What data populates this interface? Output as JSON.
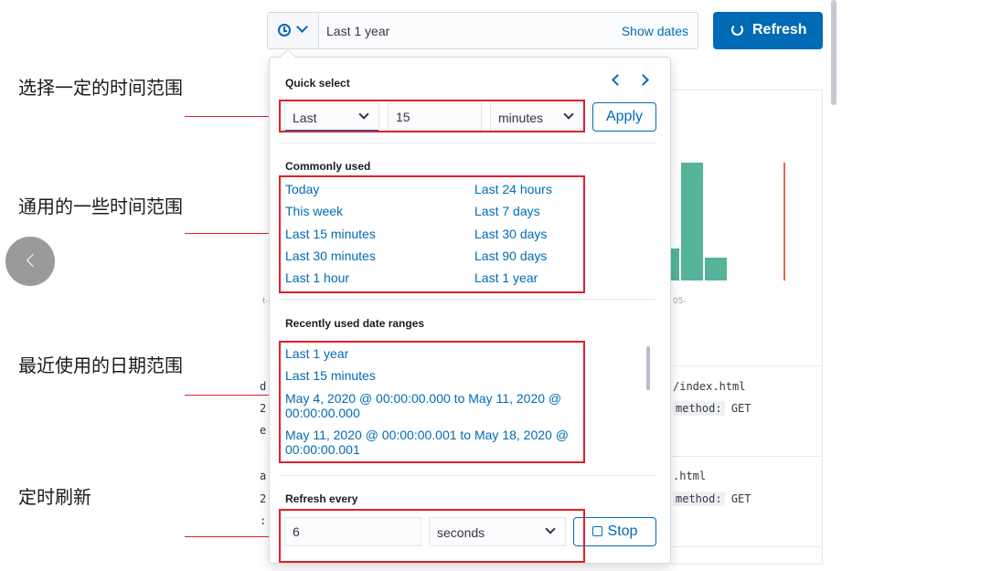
{
  "topbar": {
    "range_text": "Last 1 year",
    "show_dates_label": "Show dates",
    "refresh_label": "Refresh",
    "clock_icon": "clock-icon",
    "chevron_icon": "chevron-down-icon",
    "refresh_icon": "refresh-icon"
  },
  "background": {
    "axis_left": "t-",
    "axis_right": "05-",
    "row1_path": "/index.html",
    "row1_method_key": "method:",
    "row1_method_val": "GET",
    "row2_path": ".html",
    "row2_method_key": "method:",
    "row2_method_val": "GET",
    "edge_chars": [
      "d",
      "2",
      "e",
      "a",
      "2",
      ":"
    ]
  },
  "quick_select": {
    "title": "Quick select",
    "direction": "Last",
    "amount": "15",
    "unit": "minutes",
    "apply_label": "Apply"
  },
  "commonly_used": {
    "title": "Commonly used",
    "left": [
      "Today",
      "This week",
      "Last 15 minutes",
      "Last 30 minutes",
      "Last 1 hour"
    ],
    "right": [
      "Last 24 hours",
      "Last 7 days",
      "Last 30 days",
      "Last 90 days",
      "Last 1 year"
    ]
  },
  "recently_used": {
    "title": "Recently used date ranges",
    "items": [
      "Last 1 year",
      "Last 15 minutes",
      "May 4, 2020 @ 00:00:00.000 to May 11, 2020 @ 00:00:00.000",
      "May 11, 2020 @ 00:00:00.001 to May 18, 2020 @ 00:00:00.001"
    ]
  },
  "refresh_every": {
    "title": "Refresh every",
    "value": "6",
    "unit": "seconds",
    "stop_label": "Stop"
  },
  "annotations": {
    "quick_select": "选择一定的时间范围",
    "commonly_used": "通用的一些时间范围",
    "recently_used": "最近使用的日期范围",
    "refresh": "定时刷新"
  },
  "colors": {
    "accent": "#006bb4",
    "bar": "#54b399",
    "highlight": "#e0202a"
  }
}
